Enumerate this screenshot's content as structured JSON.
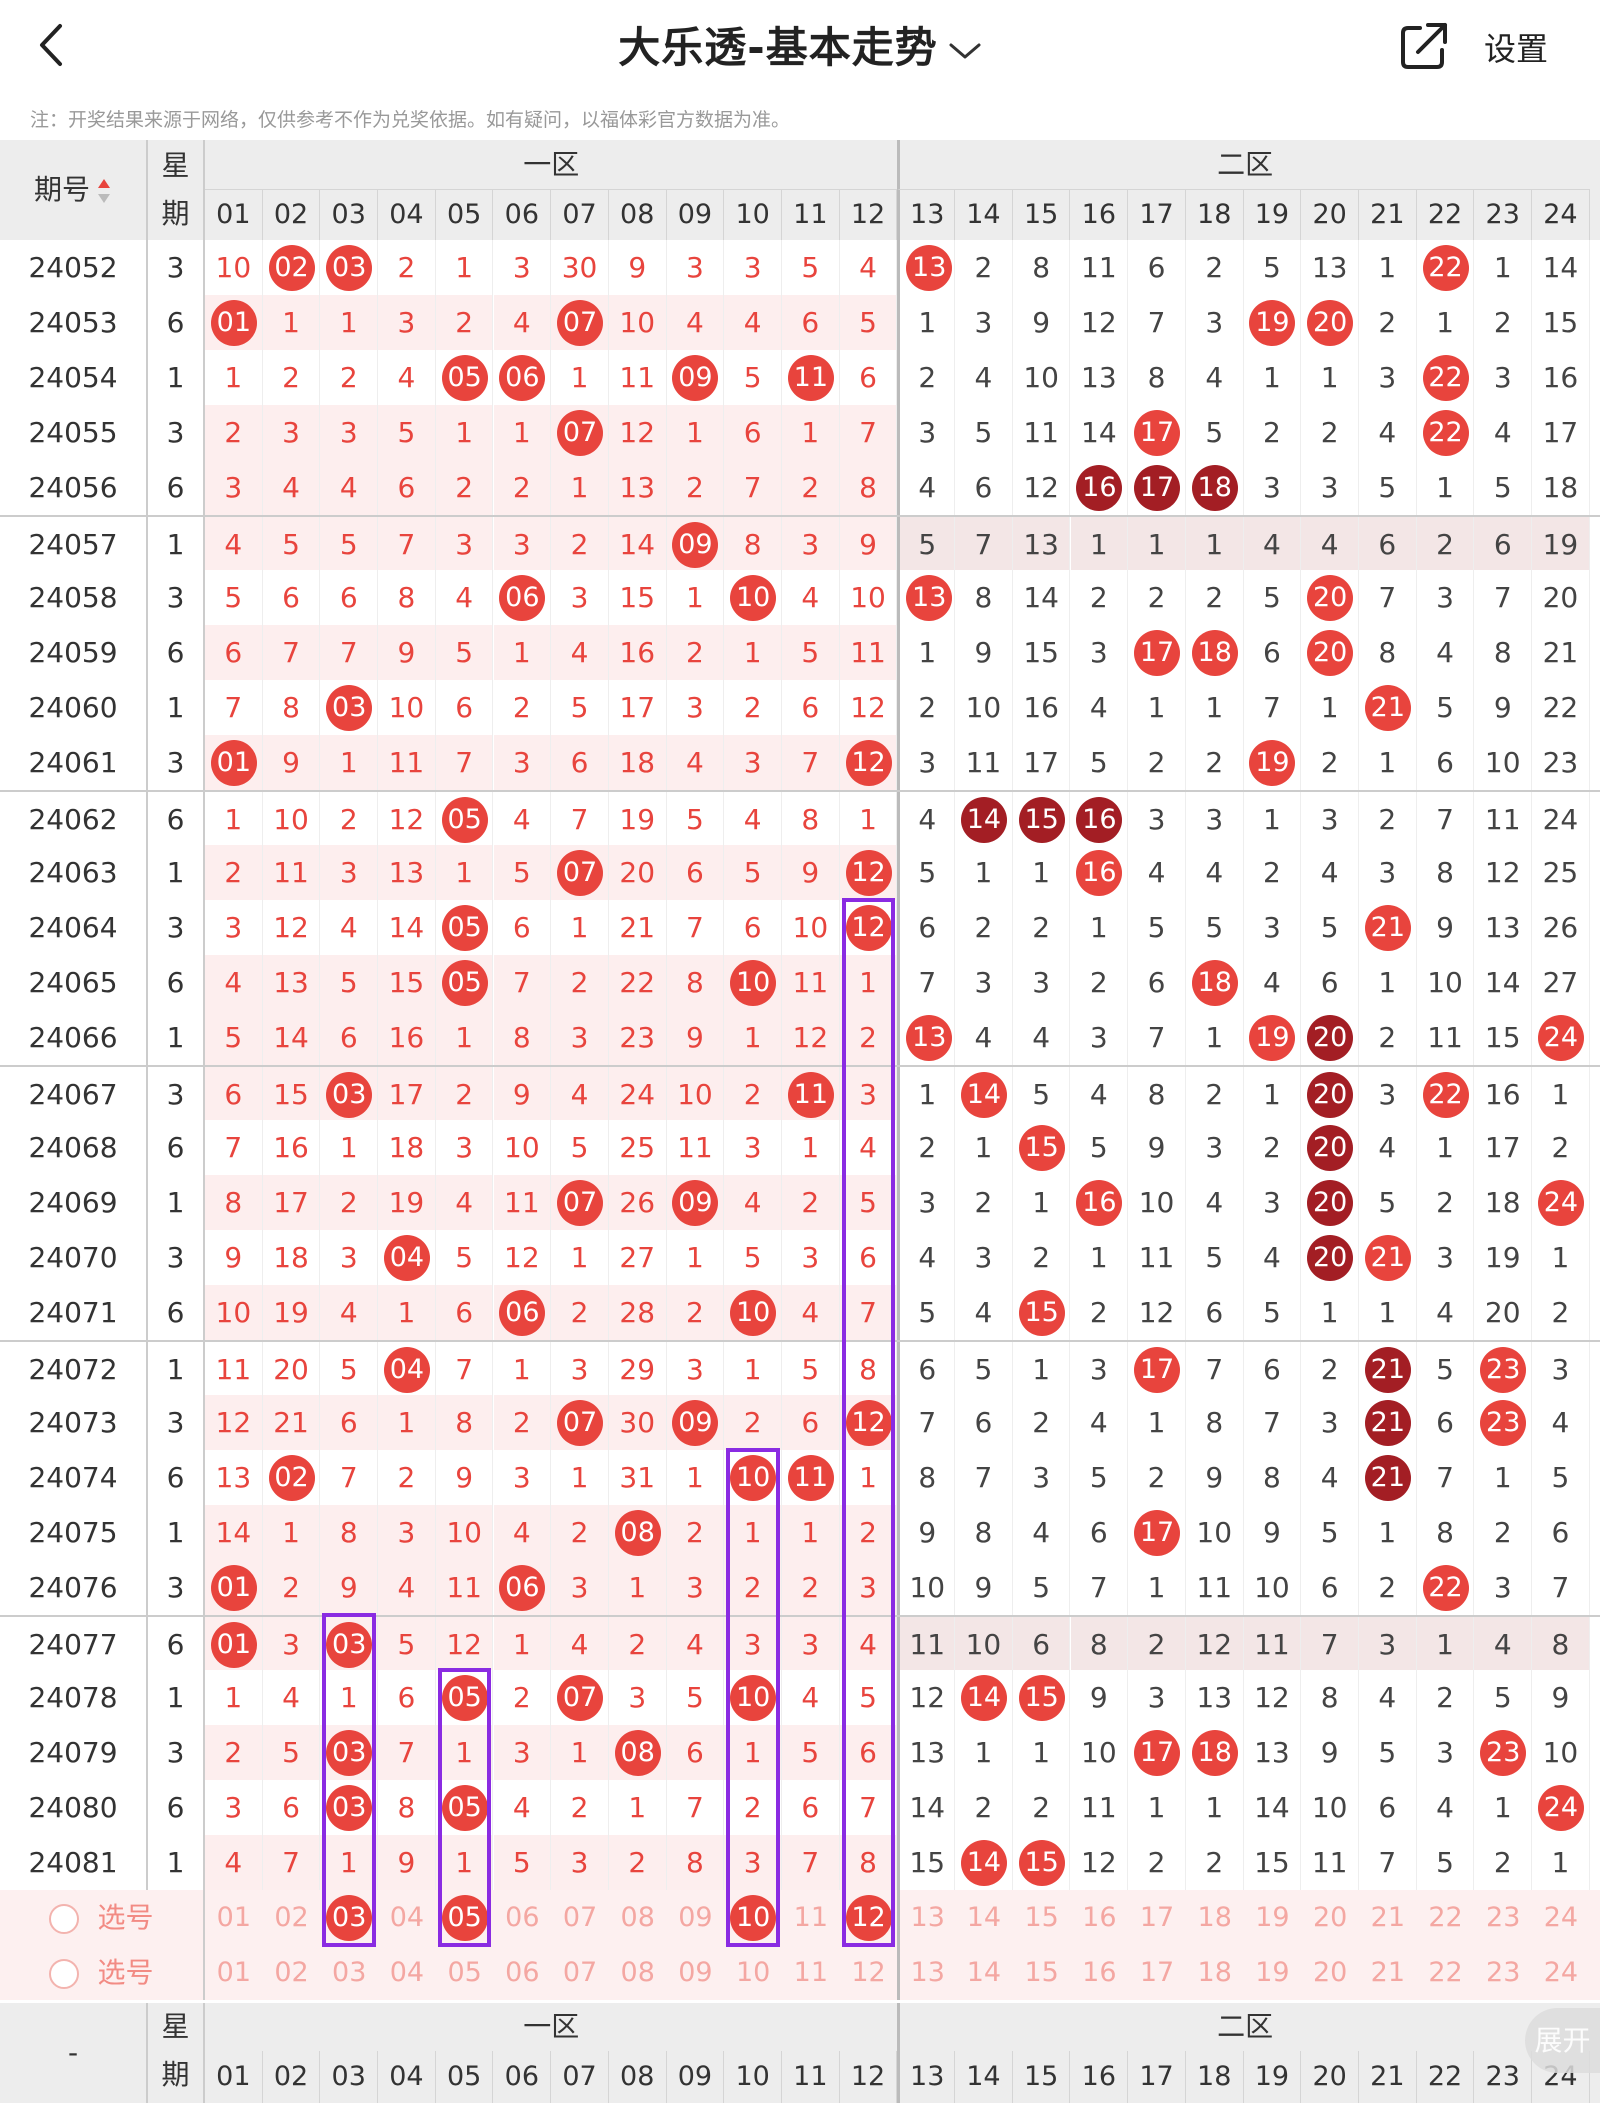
{
  "header": {
    "title": "大乐透-基本走势",
    "settings_label": "设置"
  },
  "notice": "注：开奖结果来源于网络，仅供参考不作为兑奖依据。如有疑问，以福体彩官方数据为准。",
  "table": {
    "period_header": "期号",
    "weekday_header": "星期",
    "zone1_label": "一区",
    "zone2_label": "二区",
    "numbers": [
      "01",
      "02",
      "03",
      "04",
      "05",
      "06",
      "07",
      "08",
      "09",
      "10",
      "11",
      "12",
      "13",
      "14",
      "15",
      "16",
      "17",
      "18",
      "19",
      "20",
      "21",
      "22",
      "23",
      "24"
    ],
    "rows": [
      {
        "period": "24052",
        "weekday": "3",
        "cells": [
          10,
          "02",
          "03",
          2,
          1,
          3,
          30,
          9,
          3,
          3,
          5,
          4,
          "13",
          2,
          8,
          11,
          6,
          2,
          5,
          13,
          1,
          "22",
          1,
          14
        ]
      },
      {
        "period": "24053",
        "weekday": "6",
        "cells": [
          "01",
          1,
          1,
          3,
          2,
          4,
          "07",
          10,
          4,
          4,
          6,
          5,
          1,
          3,
          9,
          12,
          7,
          3,
          "19",
          "20",
          2,
          1,
          2,
          15
        ]
      },
      {
        "period": "24054",
        "weekday": "1",
        "cells": [
          1,
          2,
          2,
          4,
          "05",
          "06",
          1,
          11,
          "09",
          5,
          "11",
          6,
          2,
          4,
          10,
          13,
          8,
          4,
          1,
          1,
          3,
          "22",
          3,
          16
        ]
      },
      {
        "period": "24055",
        "weekday": "3",
        "cells": [
          2,
          3,
          3,
          5,
          1,
          1,
          "07",
          12,
          1,
          6,
          1,
          7,
          3,
          5,
          11,
          14,
          "17",
          5,
          2,
          2,
          4,
          "22",
          4,
          17
        ]
      },
      {
        "period": "24056",
        "weekday": "6",
        "cells": [
          3,
          4,
          4,
          6,
          2,
          2,
          1,
          13,
          2,
          7,
          2,
          8,
          4,
          6,
          12,
          "16",
          "17",
          "18",
          3,
          3,
          5,
          1,
          5,
          18
        ]
      },
      {
        "period": "24057",
        "weekday": "1",
        "cells": [
          4,
          5,
          5,
          7,
          3,
          3,
          2,
          14,
          "09",
          8,
          3,
          9,
          5,
          7,
          13,
          1,
          1,
          1,
          4,
          4,
          6,
          2,
          6,
          19
        ]
      },
      {
        "period": "24058",
        "weekday": "3",
        "cells": [
          5,
          6,
          6,
          8,
          4,
          "06",
          3,
          15,
          1,
          "10",
          4,
          10,
          "13",
          8,
          14,
          2,
          2,
          2,
          5,
          "20",
          7,
          3,
          7,
          20
        ]
      },
      {
        "period": "24059",
        "weekday": "6",
        "cells": [
          6,
          7,
          7,
          9,
          5,
          1,
          4,
          16,
          2,
          1,
          5,
          11,
          1,
          9,
          15,
          3,
          "17",
          "18",
          6,
          "20",
          8,
          4,
          8,
          21
        ]
      },
      {
        "period": "24060",
        "weekday": "1",
        "cells": [
          7,
          8,
          "03",
          10,
          6,
          2,
          5,
          17,
          3,
          2,
          6,
          12,
          2,
          10,
          16,
          4,
          1,
          1,
          7,
          1,
          "21",
          5,
          9,
          22
        ]
      },
      {
        "period": "24061",
        "weekday": "3",
        "cells": [
          "01",
          9,
          1,
          11,
          7,
          3,
          6,
          18,
          4,
          3,
          7,
          "12",
          3,
          11,
          17,
          5,
          2,
          2,
          "19",
          2,
          1,
          6,
          10,
          23
        ]
      },
      {
        "period": "24062",
        "weekday": "6",
        "cells": [
          1,
          10,
          2,
          12,
          "05",
          4,
          7,
          19,
          5,
          4,
          8,
          1,
          4,
          "14",
          "15",
          "16",
          3,
          3,
          1,
          3,
          2,
          7,
          11,
          24
        ]
      },
      {
        "period": "24063",
        "weekday": "1",
        "cells": [
          2,
          11,
          3,
          13,
          1,
          5,
          "07",
          20,
          6,
          5,
          9,
          "12",
          5,
          1,
          1,
          "16",
          4,
          4,
          2,
          4,
          3,
          8,
          12,
          25
        ]
      },
      {
        "period": "24064",
        "weekday": "3",
        "cells": [
          3,
          12,
          4,
          14,
          "05",
          6,
          1,
          21,
          7,
          6,
          10,
          "12",
          6,
          2,
          2,
          1,
          5,
          5,
          3,
          5,
          "21",
          9,
          13,
          26
        ]
      },
      {
        "period": "24065",
        "weekday": "6",
        "cells": [
          4,
          13,
          5,
          15,
          "05",
          7,
          2,
          22,
          8,
          "10",
          11,
          1,
          7,
          3,
          3,
          2,
          6,
          "18",
          4,
          6,
          1,
          10,
          14,
          27
        ]
      },
      {
        "period": "24066",
        "weekday": "1",
        "cells": [
          5,
          14,
          6,
          16,
          1,
          8,
          3,
          23,
          9,
          1,
          12,
          2,
          "13",
          4,
          4,
          3,
          7,
          1,
          "19",
          "20",
          2,
          11,
          15,
          "24"
        ]
      },
      {
        "period": "24067",
        "weekday": "3",
        "cells": [
          6,
          15,
          "03",
          17,
          2,
          9,
          4,
          24,
          10,
          2,
          "11",
          3,
          1,
          "14",
          5,
          4,
          8,
          2,
          1,
          "20",
          3,
          "22",
          16,
          1
        ]
      },
      {
        "period": "24068",
        "weekday": "6",
        "cells": [
          7,
          16,
          1,
          18,
          3,
          10,
          5,
          25,
          11,
          3,
          1,
          4,
          2,
          1,
          "15",
          5,
          9,
          3,
          2,
          "20",
          4,
          1,
          17,
          2
        ]
      },
      {
        "period": "24069",
        "weekday": "1",
        "cells": [
          8,
          17,
          2,
          19,
          4,
          11,
          "07",
          26,
          "09",
          4,
          2,
          5,
          3,
          2,
          1,
          "16",
          10,
          4,
          3,
          "20",
          5,
          2,
          18,
          "24"
        ]
      },
      {
        "period": "24070",
        "weekday": "3",
        "cells": [
          9,
          18,
          3,
          "04",
          5,
          12,
          1,
          27,
          1,
          5,
          3,
          6,
          4,
          3,
          2,
          1,
          11,
          5,
          4,
          "20",
          "21",
          3,
          19,
          1
        ]
      },
      {
        "period": "24071",
        "weekday": "6",
        "cells": [
          10,
          19,
          4,
          1,
          6,
          "06",
          2,
          28,
          2,
          "10",
          4,
          7,
          5,
          4,
          "15",
          2,
          12,
          6,
          5,
          1,
          1,
          4,
          20,
          2
        ]
      },
      {
        "period": "24072",
        "weekday": "1",
        "cells": [
          11,
          20,
          5,
          "04",
          7,
          1,
          3,
          29,
          3,
          1,
          5,
          8,
          6,
          5,
          1,
          3,
          "17",
          7,
          6,
          2,
          "21",
          5,
          "23",
          3
        ]
      },
      {
        "period": "24073",
        "weekday": "3",
        "cells": [
          12,
          21,
          6,
          1,
          8,
          2,
          "07",
          30,
          "09",
          2,
          6,
          "12",
          7,
          6,
          2,
          4,
          1,
          8,
          7,
          3,
          "21",
          6,
          "23",
          4
        ]
      },
      {
        "period": "24074",
        "weekday": "6",
        "cells": [
          13,
          "02",
          7,
          2,
          9,
          3,
          1,
          31,
          1,
          "10",
          "11",
          1,
          8,
          7,
          3,
          5,
          2,
          9,
          8,
          4,
          "21",
          7,
          1,
          5
        ]
      },
      {
        "period": "24075",
        "weekday": "1",
        "cells": [
          14,
          1,
          8,
          3,
          10,
          4,
          2,
          "08",
          2,
          1,
          1,
          2,
          9,
          8,
          4,
          6,
          "17",
          10,
          9,
          5,
          1,
          8,
          2,
          6
        ]
      },
      {
        "period": "24076",
        "weekday": "3",
        "cells": [
          "01",
          2,
          9,
          4,
          11,
          "06",
          3,
          1,
          3,
          2,
          2,
          3,
          10,
          9,
          5,
          7,
          1,
          11,
          10,
          6,
          2,
          "22",
          3,
          7
        ]
      },
      {
        "period": "24077",
        "weekday": "6",
        "cells": [
          "01",
          3,
          "03",
          5,
          12,
          1,
          4,
          2,
          4,
          3,
          3,
          4,
          11,
          10,
          6,
          8,
          2,
          12,
          11,
          7,
          3,
          1,
          4,
          8
        ]
      },
      {
        "period": "24078",
        "weekday": "1",
        "cells": [
          1,
          4,
          1,
          6,
          "05",
          2,
          "07",
          3,
          5,
          "10",
          4,
          5,
          12,
          "14",
          "15",
          9,
          3,
          13,
          12,
          8,
          4,
          2,
          5,
          9
        ]
      },
      {
        "period": "24079",
        "weekday": "3",
        "cells": [
          2,
          5,
          "03",
          7,
          1,
          3,
          1,
          "08",
          6,
          1,
          5,
          6,
          13,
          1,
          1,
          10,
          "17",
          "18",
          13,
          9,
          5,
          3,
          "23",
          10
        ]
      },
      {
        "period": "24080",
        "weekday": "6",
        "cells": [
          3,
          6,
          "03",
          8,
          "05",
          4,
          2,
          1,
          7,
          2,
          6,
          7,
          14,
          2,
          2,
          11,
          1,
          1,
          14,
          10,
          6,
          4,
          1,
          "24"
        ]
      },
      {
        "period": "24081",
        "weekday": "1",
        "cells": [
          4,
          7,
          1,
          9,
          1,
          5,
          3,
          2,
          8,
          3,
          7,
          8,
          15,
          "14",
          "15",
          12,
          2,
          2,
          15,
          11,
          7,
          5,
          2,
          1
        ]
      }
    ],
    "select_rows": [
      {
        "label": "选号",
        "selected": [
          "03",
          "05",
          "10",
          "12"
        ]
      },
      {
        "label": "选号",
        "selected": []
      }
    ],
    "footer_period": "-",
    "footer_weekday": "星期"
  },
  "expand_label": "展开",
  "colors": {
    "ball_red": "#e8443d",
    "ball_dark": "#a31e24",
    "number_text": "#e8443d",
    "highlight_box": "#8a2be2",
    "header_bg": "#ededed"
  }
}
